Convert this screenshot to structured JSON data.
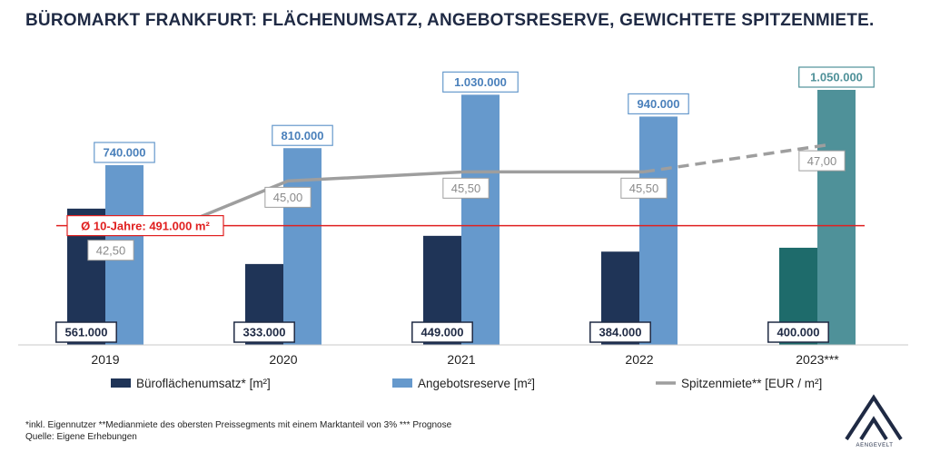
{
  "title": "BÜROMARKT FRANKFURT: FLÄCHENUMSATZ, ANGEBOTSRESERVE, GEWICHTETE SPITZENMIETE.",
  "chart_data": {
    "type": "bar",
    "categories": [
      "2019",
      "2020",
      "2021",
      "2022",
      "2023***"
    ],
    "series": [
      {
        "name": "Büroflächenumsatz* [m²]",
        "kind": "bar",
        "values": [
          561000,
          333000,
          449000,
          384000,
          400000
        ],
        "labels": [
          "561.000",
          "333.000",
          "449.000",
          "384.000",
          "400.000"
        ],
        "colors": [
          "#1f3457",
          "#1f3457",
          "#1f3457",
          "#1f3457",
          "#1e6b6b"
        ]
      },
      {
        "name": "Angebotsreserve [m²]",
        "kind": "bar",
        "values": [
          740000,
          810000,
          1030000,
          940000,
          1050000
        ],
        "labels": [
          "740.000",
          "810.000",
          "1.030.000",
          "940.000",
          "1.050.000"
        ],
        "colors": [
          "#6699cc",
          "#6699cc",
          "#6699cc",
          "#6699cc",
          "#4f9199"
        ]
      },
      {
        "name": "Spitzenmiete** [EUR / m²]",
        "kind": "line",
        "values": [
          42.5,
          45.0,
          45.5,
          45.5,
          47.0
        ],
        "labels": [
          "42,50",
          "45,00",
          "45,50",
          "45,50",
          "47,00"
        ],
        "color": "#9e9e9e",
        "dashed_last_segment": true
      }
    ],
    "reference_line": {
      "label": "Ø 10-Jahre: 491.000 m²",
      "value": 491000,
      "color": "#e02020"
    },
    "y_scale": {
      "bars": [
        0,
        1050000
      ],
      "rent": [
        40.0,
        48.0
      ]
    }
  },
  "footnote": {
    "line1": "*inkl. Eigennutzer **Medianmiete des obersten Preissegments mit einem Marktanteil von 3% *** Prognose",
    "line2": "Quelle: Eigene Erhebungen"
  },
  "logo": {
    "text": "AENGEVELT"
  }
}
